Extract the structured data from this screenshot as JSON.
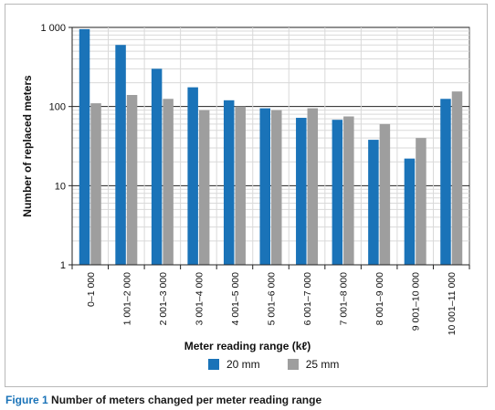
{
  "chart_data": {
    "type": "bar",
    "title": "",
    "xlabel": "Meter reading range (kℓ)",
    "ylabel": "Number of replaced meters",
    "yscale": "log",
    "ylim": [
      1,
      1000
    ],
    "yticks": [
      1,
      10,
      100,
      1000
    ],
    "ytick_labels": [
      "1",
      "10",
      "100",
      "1 000"
    ],
    "grid": true,
    "legend_position": "bottom",
    "categories": [
      "0–1 000",
      "1 001–2 000",
      "2 001–3 000",
      "3 001–4 000",
      "4 001–5 000",
      "5 001–6 000",
      "6 001–7 000",
      "7 001–8 000",
      "8 001–9 000",
      "9 001–10 000",
      "10 001–11 000"
    ],
    "series": [
      {
        "name": "20 mm",
        "color": "#1a73b8",
        "values": [
          950,
          600,
          300,
          175,
          120,
          95,
          72,
          68,
          38,
          22,
          125
        ]
      },
      {
        "name": "25 mm",
        "color": "#9e9e9e",
        "values": [
          110,
          140,
          125,
          90,
          100,
          90,
          95,
          75,
          60,
          40,
          155
        ]
      }
    ]
  },
  "caption": {
    "figure_label": "Figure 1",
    "text": "Number of meters changed per meter reading range"
  }
}
